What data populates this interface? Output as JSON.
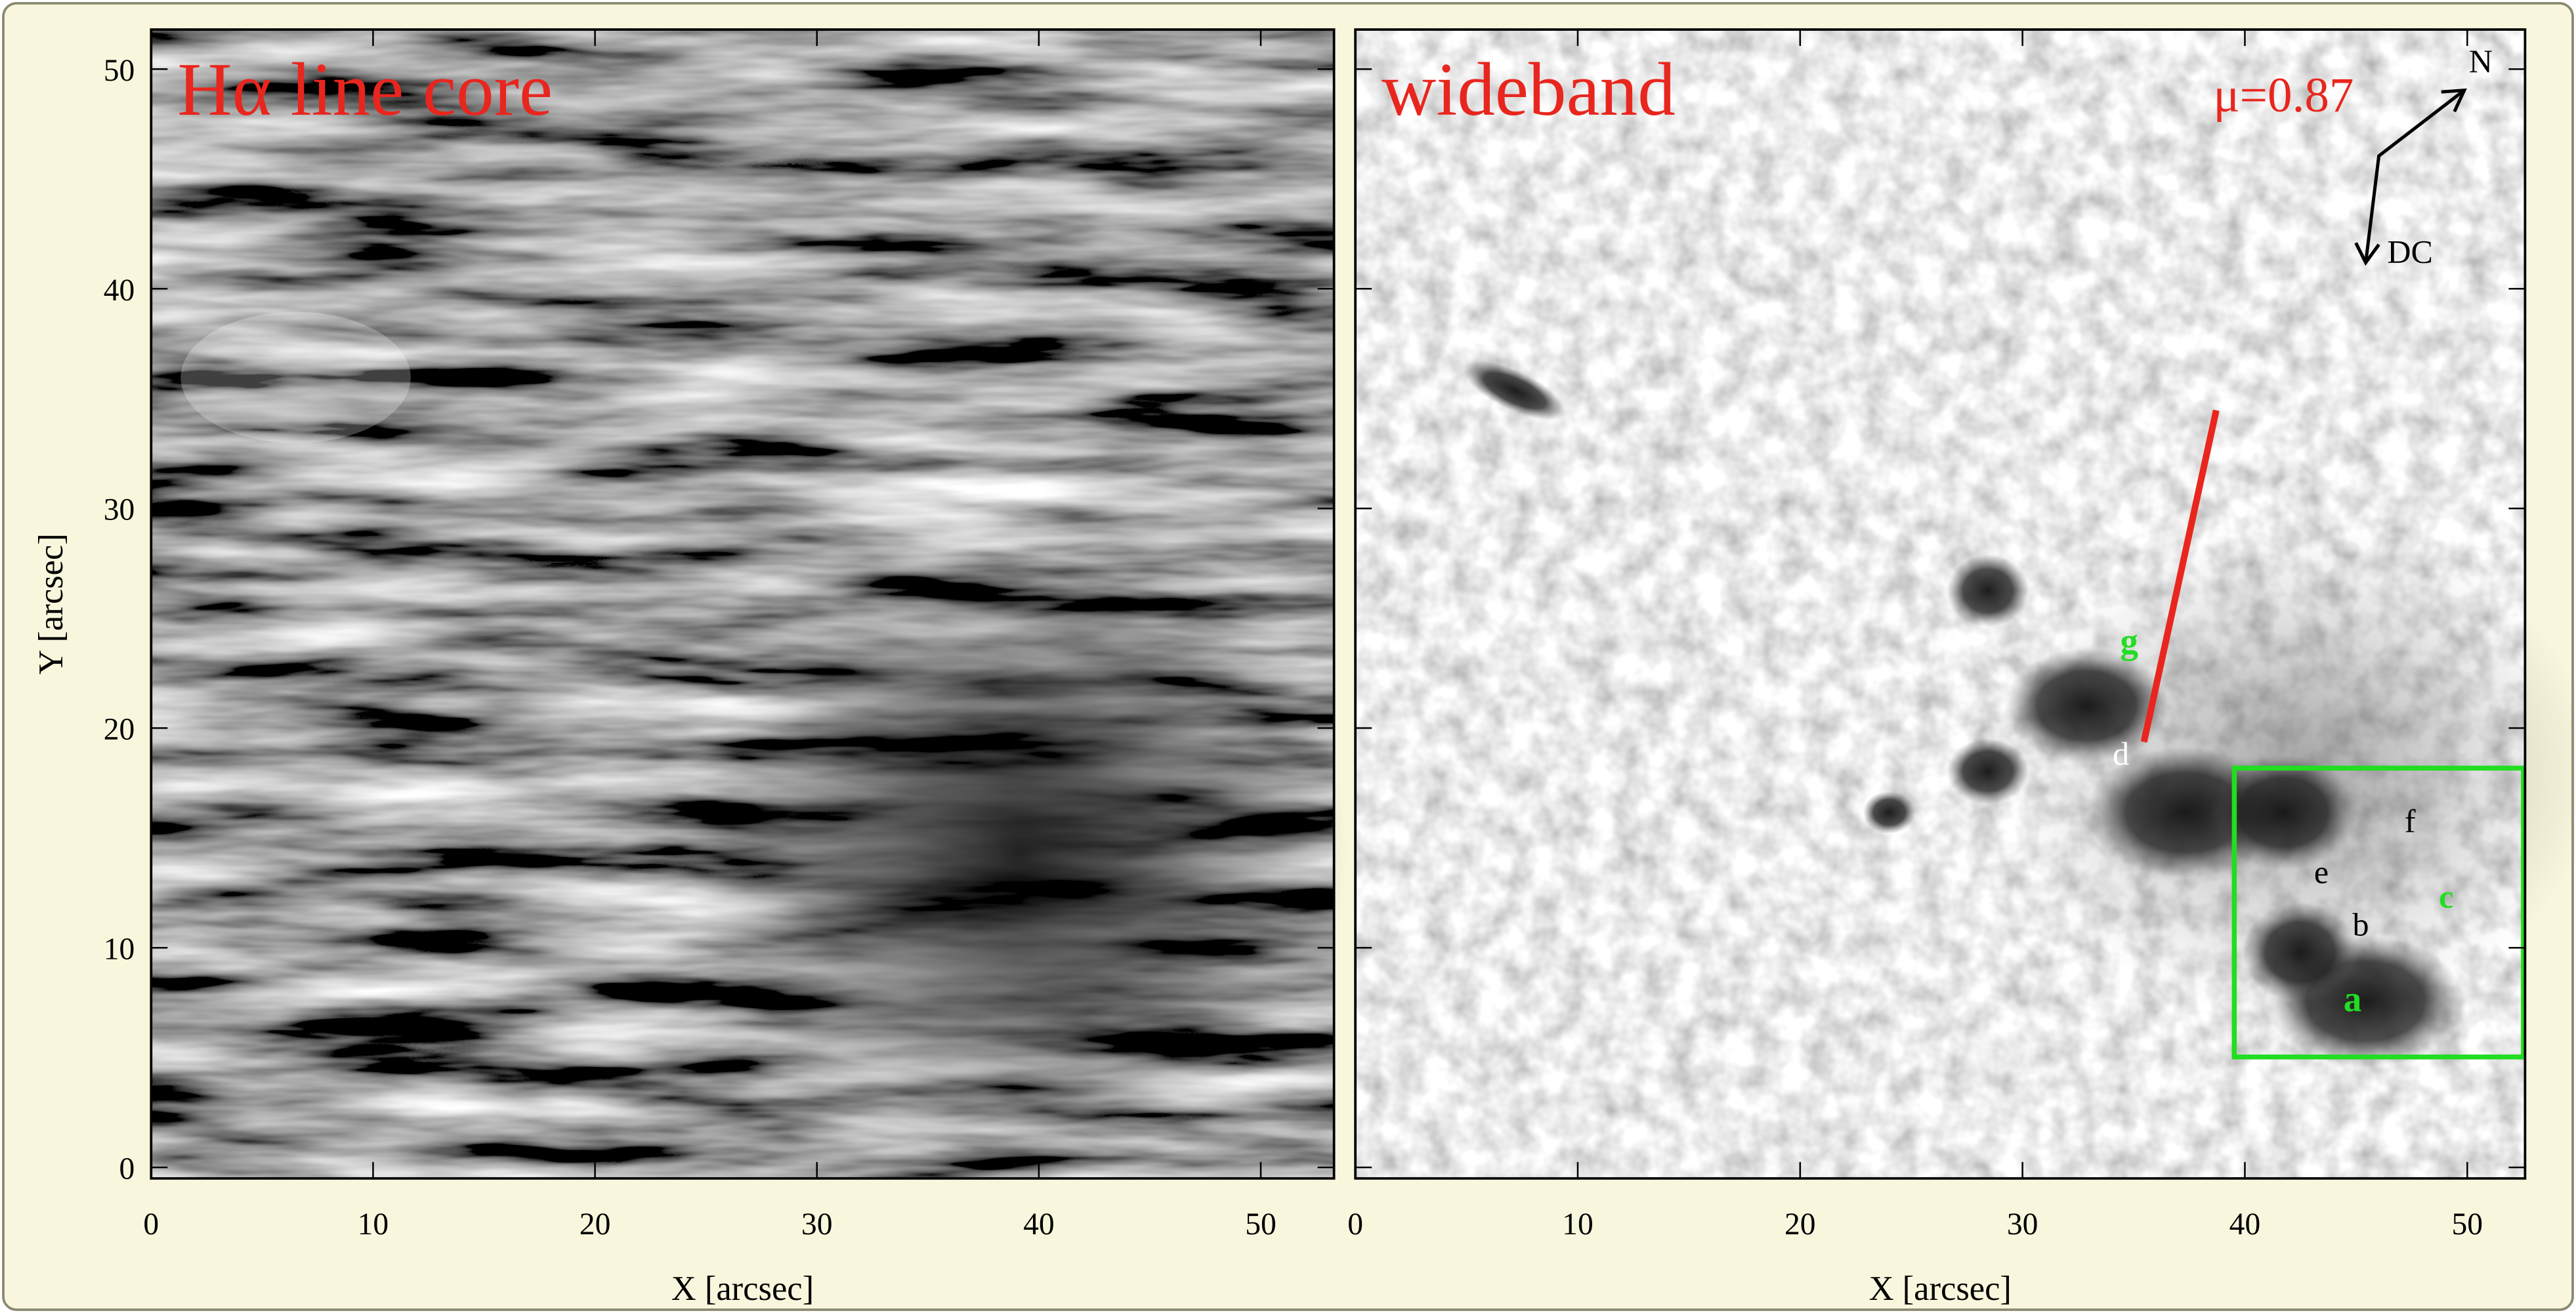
{
  "chart_data": [
    {
      "type": "image",
      "title": "Hα line core",
      "x_label": "X [arcsec]",
      "y_label": "Y [arcsec]",
      "xlim": [
        0,
        53.3
      ],
      "ylim": [
        -0.5,
        51.8
      ],
      "xticks": [
        0,
        10,
        20,
        30,
        40,
        50
      ],
      "yticks": [
        0,
        10,
        20,
        30,
        40,
        50
      ]
    },
    {
      "type": "image",
      "title": "wideband",
      "x_label": "X [arcsec]",
      "xlim": [
        0,
        52.6
      ],
      "ylim": [
        -0.5,
        51.8
      ],
      "xticks": [
        0,
        10,
        20,
        30,
        40,
        50
      ],
      "yticks": [
        0,
        10,
        20,
        30,
        40,
        50
      ],
      "annotations": [
        {
          "text": "μ=0.87",
          "color": "#e8261e"
        },
        {
          "text": "N",
          "color": "#000000"
        },
        {
          "text": "DC",
          "color": "#000000"
        },
        {
          "text": "g",
          "color": "#22dd22"
        },
        {
          "text": "d",
          "color": "#ffffff"
        },
        {
          "text": "f",
          "color": "#000000"
        },
        {
          "text": "e",
          "color": "#000000"
        },
        {
          "text": "c",
          "color": "#22dd22"
        },
        {
          "text": "b",
          "color": "#000000"
        },
        {
          "text": "a",
          "color": "#22dd22"
        }
      ]
    }
  ]
}
